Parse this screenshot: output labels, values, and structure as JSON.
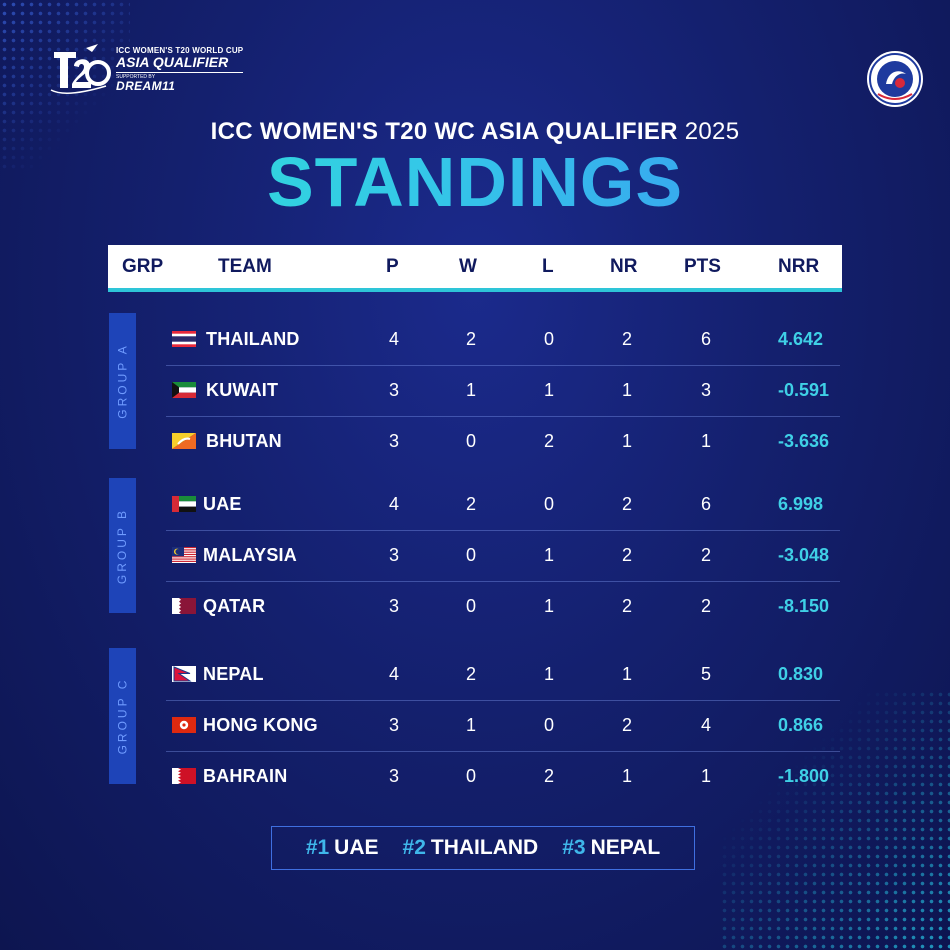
{
  "branding": {
    "logo_line1": "ICC WOMEN'S T20 WORLD CUP",
    "logo_line2": "ASIA QUALIFIER",
    "logo_line3": "SUPPORTED BY",
    "logo_line4": "DREAM11",
    "logo_mark": "t20-logo-icon",
    "badge": "association-badge-icon"
  },
  "heading": {
    "subtitle": "ICC WOMEN'S T20 WC ASIA QUALIFIER",
    "year": "2025",
    "title": "STANDINGS"
  },
  "table": {
    "columns": [
      "GRP",
      "TEAM",
      "P",
      "W",
      "L",
      "NR",
      "PTS",
      "NRR"
    ],
    "groups": [
      {
        "label": "GROUP A",
        "rows": [
          {
            "team": "THAILAND",
            "flag": "thailand-flag-icon",
            "p": "4",
            "w": "2",
            "l": "0",
            "nr": "2",
            "pts": "6",
            "nrr": "4.642"
          },
          {
            "team": "KUWAIT",
            "flag": "kuwait-flag-icon",
            "p": "3",
            "w": "1",
            "l": "1",
            "nr": "1",
            "pts": "3",
            "nrr": "-0.591"
          },
          {
            "team": "BHUTAN",
            "flag": "bhutan-flag-icon",
            "p": "3",
            "w": "0",
            "l": "2",
            "nr": "1",
            "pts": "1",
            "nrr": "-3.636"
          }
        ]
      },
      {
        "label": "GROUP B",
        "rows": [
          {
            "team": "UAE",
            "flag": "uae-flag-icon",
            "p": "4",
            "w": "2",
            "l": "0",
            "nr": "2",
            "pts": "6",
            "nrr": "6.998"
          },
          {
            "team": "MALAYSIA",
            "flag": "malaysia-flag-icon",
            "p": "3",
            "w": "0",
            "l": "1",
            "nr": "2",
            "pts": "2",
            "nrr": "-3.048"
          },
          {
            "team": "QATAR",
            "flag": "qatar-flag-icon",
            "p": "3",
            "w": "0",
            "l": "1",
            "nr": "2",
            "pts": "2",
            "nrr": "-8.150"
          }
        ]
      },
      {
        "label": "GROUP C",
        "rows": [
          {
            "team": "NEPAL",
            "flag": "nepal-flag-icon",
            "p": "4",
            "w": "2",
            "l": "1",
            "nr": "1",
            "pts": "5",
            "nrr": "0.830"
          },
          {
            "team": "HONG KONG",
            "flag": "hong-kong-flag-icon",
            "p": "3",
            "w": "1",
            "l": "0",
            "nr": "2",
            "pts": "4",
            "nrr": "0.866"
          },
          {
            "team": "BAHRAIN",
            "flag": "bahrain-flag-icon",
            "p": "3",
            "w": "0",
            "l": "2",
            "nr": "1",
            "pts": "1",
            "nrr": "-1.800"
          }
        ]
      }
    ]
  },
  "summary": [
    {
      "rank": "#1",
      "team": "UAE"
    },
    {
      "rank": "#2",
      "team": "THAILAND"
    },
    {
      "rank": "#3",
      "team": "NEPAL"
    }
  ],
  "colors": {
    "background": "#14206e",
    "accent_cyan": "#3fd0e6",
    "header_text": "#101a5e",
    "group_label_bg": "#1e44b8"
  }
}
